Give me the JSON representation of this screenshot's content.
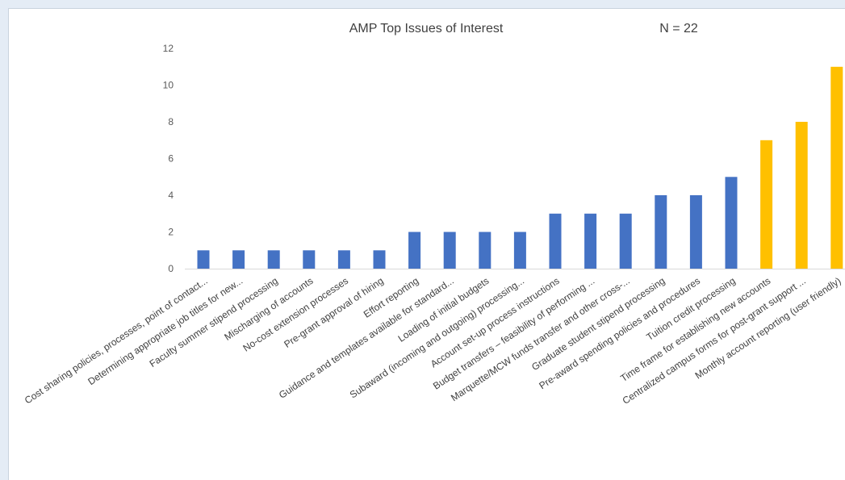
{
  "chart_data": {
    "type": "bar",
    "title": "AMP Top Issues of Interest",
    "annotation": "N = 22",
    "xlabel": "",
    "ylabel": "",
    "ylim": [
      0,
      12
    ],
    "yticks": [
      0,
      2,
      4,
      6,
      8,
      10,
      12
    ],
    "grid": false,
    "legend": "none",
    "categories": [
      "Cost sharing policies, processes, point of contact...",
      "Determining appropriate job titles for new...",
      "Faculty summer stipend processing",
      "Mischarging of accounts",
      "No-cost extension processes",
      "Pre-grant approval of hiring",
      "Effort reporting",
      "Guidance and templates available for standard...",
      "Loading of initial budgets",
      "Subaward (incoming and outgoing) processing...",
      "Account set-up process instructions",
      "Budget transfers – feasibility of performing ...",
      "Marquette/MCW funds transfer and other cross-...",
      "Graduate student stipend processing",
      "Pre-award spending policies and procedures",
      "Tuition credit processing",
      "Time frame for establishing new accounts",
      "Centralized campus forms for post-grant support ...",
      "Monthly account reporting (user friendly)"
    ],
    "values": [
      1,
      1,
      1,
      1,
      1,
      1,
      2,
      2,
      2,
      2,
      3,
      3,
      3,
      4,
      4,
      5,
      7,
      8,
      11
    ],
    "colors": {
      "default": "#4472c4",
      "highlight": "#ffc000"
    },
    "highlight_indices": [
      16,
      17,
      18
    ]
  }
}
